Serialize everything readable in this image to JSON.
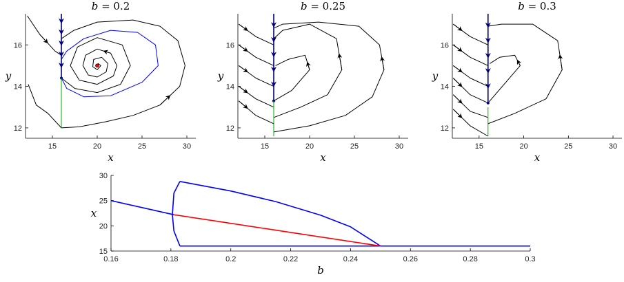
{
  "chart_data": [
    {
      "type": "line",
      "title": "b = 0.2",
      "xlabel": "x",
      "ylabel": "y",
      "xlim": [
        12,
        31
      ],
      "ylim": [
        11.5,
        17.5
      ],
      "xticks": [
        15,
        20,
        25,
        30
      ],
      "yticks": [
        12,
        14,
        16
      ],
      "colors": {
        "trajectory": "#000000",
        "cycle": "#0000ff",
        "sliding": "#00aa00",
        "manifold": "#000080",
        "equilibrium": "#ff0000"
      },
      "series": [
        {
          "role": "trajectory",
          "points": [
            [
              12.2,
              17.4
            ],
            [
              13.6,
              16.5
            ],
            [
              15.3,
              15.7
            ],
            [
              16,
              15.5
            ]
          ]
        },
        {
          "role": "trajectory",
          "points": [
            [
              12.3,
              14.1
            ],
            [
              13.2,
              13.1
            ],
            [
              14.5,
              12.7
            ],
            [
              16,
              12.0
            ],
            [
              18,
              12.05
            ],
            [
              21,
              12.3
            ],
            [
              24,
              12.6
            ],
            [
              27,
              13.1
            ],
            [
              29.2,
              14.0
            ],
            [
              29.8,
              15.0
            ],
            [
              29,
              16.2
            ],
            [
              27,
              16.9
            ],
            [
              24,
              17.2
            ],
            [
              20,
              17.1
            ],
            [
              17.4,
              16.7
            ],
            [
              16,
              16.3
            ]
          ]
        },
        {
          "role": "trajectory",
          "points": [
            [
              16,
              14.4
            ],
            [
              17.5,
              13.9
            ],
            [
              20,
              13.7
            ],
            [
              22.6,
              14.1
            ],
            [
              23.7,
              15.0
            ],
            [
              22.8,
              16.0
            ],
            [
              20,
              16.35
            ],
            [
              17.8,
              15.9
            ],
            [
              17.0,
              15.0
            ],
            [
              18,
              14.3
            ],
            [
              20,
              14.1
            ],
            [
              21.8,
              14.5
            ],
            [
              22.2,
              15.0
            ],
            [
              21.5,
              15.6
            ],
            [
              20,
              15.8
            ],
            [
              18.7,
              15.5
            ],
            [
              18.4,
              15.0
            ],
            [
              19,
              14.55
            ],
            [
              20,
              14.45
            ],
            [
              21,
              14.7
            ],
            [
              21.2,
              15.1
            ],
            [
              20.5,
              15.4
            ],
            [
              19.6,
              15.3
            ],
            [
              19.5,
              14.95
            ],
            [
              20,
              14.8
            ],
            [
              20.4,
              15.0
            ],
            [
              20.1,
              15.1
            ],
            [
              19.95,
              15.0
            ]
          ]
        },
        {
          "role": "cycle",
          "points": [
            [
              16,
              14.4
            ],
            [
              16.6,
              13.9
            ],
            [
              18.5,
              13.5
            ],
            [
              21.5,
              13.55
            ],
            [
              25,
              14.2
            ],
            [
              26.8,
              15.0
            ],
            [
              26.5,
              16.0
            ],
            [
              24.5,
              16.6
            ],
            [
              21.5,
              16.7
            ],
            [
              18.5,
              16.3
            ],
            [
              16.6,
              15.7
            ],
            [
              16,
              15.3
            ]
          ]
        },
        {
          "role": "manifold",
          "points": [
            [
              16,
              17.6
            ],
            [
              16,
              14.4
            ]
          ]
        },
        {
          "role": "sliding",
          "points": [
            [
              16,
              14.4
            ],
            [
              16,
              12.0
            ]
          ]
        }
      ],
      "equilibrium": [
        20,
        15.0
      ]
    },
    {
      "type": "line",
      "title": "b = 0.25",
      "xlabel": "x",
      "ylabel": "y",
      "xlim": [
        12,
        31
      ],
      "ylim": [
        11.5,
        17.5
      ],
      "xticks": [
        15,
        20,
        25,
        30
      ],
      "yticks": [
        12,
        14,
        16
      ],
      "colors": {
        "trajectory": "#000000",
        "sliding": "#00aa00",
        "manifold": "#000080"
      },
      "series": [
        {
          "role": "trajectory",
          "points": [
            [
              12.1,
              17.0
            ],
            [
              14,
              16.4
            ],
            [
              16,
              16.0
            ]
          ]
        },
        {
          "role": "trajectory",
          "points": [
            [
              12.1,
              16.0
            ],
            [
              14,
              15.4
            ],
            [
              16,
              15.0
            ]
          ]
        },
        {
          "role": "trajectory",
          "points": [
            [
              12.1,
              15.0
            ],
            [
              14,
              14.4
            ],
            [
              16,
              14.0
            ]
          ]
        },
        {
          "role": "trajectory",
          "points": [
            [
              12.1,
              14.0
            ],
            [
              14,
              13.4
            ],
            [
              16,
              13.0
            ]
          ]
        },
        {
          "role": "trajectory",
          "points": [
            [
              12.1,
              13.3
            ],
            [
              14,
              12.6
            ],
            [
              16,
              12.2
            ]
          ]
        },
        {
          "role": "trajectory",
          "points": [
            [
              16,
              13.3
            ],
            [
              18,
              13.8
            ],
            [
              20,
              14.8
            ],
            [
              19.5,
              15.5
            ],
            [
              17.6,
              15.3
            ],
            [
              16.2,
              15.0
            ]
          ]
        },
        {
          "role": "trajectory",
          "points": [
            [
              16,
              12.5
            ],
            [
              19,
              13.0
            ],
            [
              22,
              13.6
            ],
            [
              23.6,
              14.8
            ],
            [
              23,
              16.3
            ],
            [
              20,
              17.0
            ],
            [
              17,
              16.7
            ],
            [
              16,
              16.3
            ]
          ]
        },
        {
          "role": "trajectory",
          "points": [
            [
              16,
              11.8
            ],
            [
              20,
              12.1
            ],
            [
              24,
              12.6
            ],
            [
              27,
              13.5
            ],
            [
              28.3,
              14.8
            ],
            [
              27.8,
              16.0
            ],
            [
              25.5,
              16.9
            ],
            [
              21,
              17.1
            ],
            [
              17,
              17.0
            ],
            [
              16,
              16.8
            ]
          ]
        },
        {
          "role": "manifold",
          "points": [
            [
              16,
              17.6
            ],
            [
              16,
              13.3
            ]
          ]
        },
        {
          "role": "sliding",
          "points": [
            [
              16,
              13.3
            ],
            [
              16,
              11.6
            ]
          ]
        }
      ]
    },
    {
      "type": "line",
      "title": "b = 0.3",
      "xlabel": "x",
      "ylabel": "y",
      "xlim": [
        12,
        31
      ],
      "ylim": [
        11.5,
        17.5
      ],
      "xticks": [
        15,
        20,
        25,
        30
      ],
      "yticks": [
        12,
        14,
        16
      ],
      "colors": {
        "trajectory": "#000000",
        "sliding": "#00aa00",
        "manifold": "#000080"
      },
      "series": [
        {
          "role": "trajectory",
          "points": [
            [
              12.1,
              17.0
            ],
            [
              14,
              16.4
            ],
            [
              16,
              16.0
            ]
          ]
        },
        {
          "role": "trajectory",
          "points": [
            [
              12.1,
              16.0
            ],
            [
              14,
              15.4
            ],
            [
              16,
              15.0
            ]
          ]
        },
        {
          "role": "trajectory",
          "points": [
            [
              12.1,
              15.0
            ],
            [
              14,
              14.4
            ],
            [
              16,
              14.0
            ]
          ]
        },
        {
          "role": "trajectory",
          "points": [
            [
              12.1,
              14.4
            ],
            [
              14,
              13.6
            ],
            [
              16,
              13.2
            ]
          ]
        },
        {
          "role": "trajectory",
          "points": [
            [
              12.1,
              13.6
            ],
            [
              14,
              12.8
            ],
            [
              16,
              12.5
            ]
          ]
        },
        {
          "role": "trajectory",
          "points": [
            [
              12.1,
              12.9
            ],
            [
              14,
              12.1
            ],
            [
              16,
              11.6
            ]
          ]
        },
        {
          "role": "trajectory",
          "points": [
            [
              16,
              13.2
            ],
            [
              18,
              14.2
            ],
            [
              19.6,
              15.0
            ],
            [
              19,
              15.5
            ],
            [
              17.3,
              15.4
            ],
            [
              16.2,
              15.1
            ]
          ]
        },
        {
          "role": "trajectory",
          "points": [
            [
              16,
              12.2
            ],
            [
              19,
              12.7
            ],
            [
              22.5,
              13.4
            ],
            [
              24.3,
              14.8
            ],
            [
              23.8,
              16.2
            ],
            [
              21,
              17.0
            ],
            [
              17.5,
              17.0
            ],
            [
              16,
              16.9
            ]
          ]
        },
        {
          "role": "manifold",
          "points": [
            [
              16,
              17.6
            ],
            [
              16,
              13.2
            ]
          ]
        },
        {
          "role": "sliding",
          "points": [
            [
              16,
              13.0
            ],
            [
              16,
              11.6
            ]
          ]
        }
      ]
    },
    {
      "type": "line",
      "title": "",
      "xlabel": "b",
      "ylabel": "x",
      "xlim": [
        0.16,
        0.3
      ],
      "ylim": [
        15,
        30
      ],
      "xticks": [
        0.16,
        0.18,
        0.2,
        0.22,
        0.24,
        0.26,
        0.28,
        0.3
      ],
      "xtick_labels": [
        "0.16",
        "0.18",
        "0.2",
        "0.22",
        "0.24",
        "0.26",
        "0.28",
        "0.3"
      ],
      "yticks": [
        15,
        20,
        25,
        30
      ],
      "colors": {
        "branch": "#0000ff",
        "unstable": "#ff0000"
      },
      "series": [
        {
          "role": "branch",
          "points": [
            [
              0.16,
              25.0
            ],
            [
              0.181,
              22.2
            ]
          ]
        },
        {
          "role": "branch",
          "points": [
            [
              0.183,
              28.8
            ],
            [
              0.181,
              26.5
            ],
            [
              0.1805,
              22.2
            ],
            [
              0.181,
              19.0
            ],
            [
              0.183,
              16.0
            ]
          ]
        },
        {
          "role": "branch",
          "points": [
            [
              0.183,
              28.8
            ],
            [
              0.2,
              26.9
            ],
            [
              0.215,
              24.8
            ],
            [
              0.23,
              22.1
            ],
            [
              0.24,
              19.8
            ],
            [
              0.25,
              16.0
            ]
          ]
        },
        {
          "role": "branch",
          "points": [
            [
              0.183,
              16.0
            ],
            [
              0.3,
              16.0
            ]
          ]
        },
        {
          "role": "unstable",
          "points": [
            [
              0.181,
              22.2
            ],
            [
              0.2,
              20.5
            ],
            [
              0.22,
              18.7
            ],
            [
              0.25,
              16.0
            ]
          ]
        }
      ]
    }
  ]
}
